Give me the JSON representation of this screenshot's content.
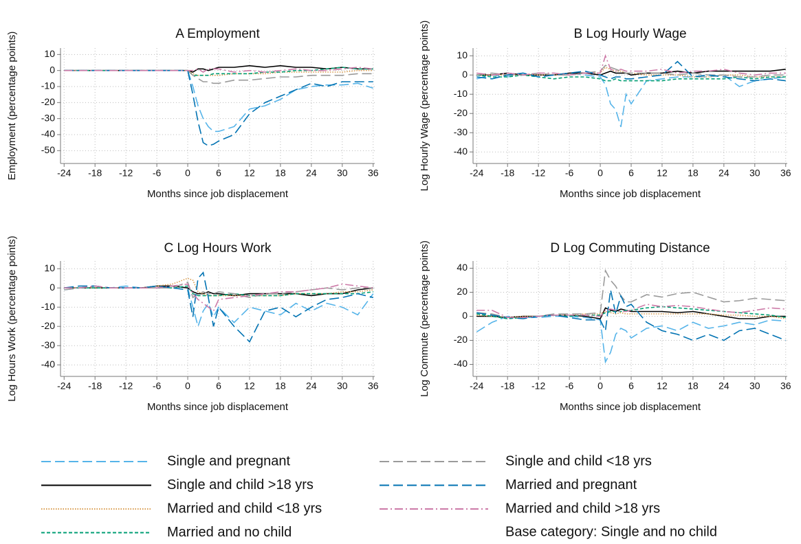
{
  "chart_data": [
    {
      "type": "line",
      "title": "A Employment",
      "xlabel": "Months since job displacement",
      "ylabel": "Employment (percentage points)",
      "x": [
        -24,
        -21,
        -18,
        -15,
        -12,
        -9,
        -6,
        -3,
        0,
        1,
        2,
        3,
        4,
        5,
        6,
        9,
        12,
        15,
        18,
        21,
        24,
        27,
        30,
        33,
        36
      ],
      "xlim": [
        -24.7,
        36.3
      ],
      "xticks": [
        -24,
        -18,
        -12,
        -6,
        0,
        6,
        12,
        18,
        24,
        30,
        36
      ],
      "ylim": [
        -58,
        14
      ],
      "yticks": [
        10,
        0,
        -10,
        -20,
        -30,
        -40,
        -50
      ],
      "grid": true,
      "series": [
        {
          "name": "Single and pregnant",
          "color": "#56b4e9",
          "dash": "long",
          "values": [
            0,
            0,
            0,
            0,
            0,
            0,
            0,
            0,
            0,
            -10,
            -22,
            -30,
            -35,
            -38,
            -38,
            -35,
            -24,
            -22,
            -18,
            -12,
            -10,
            -9,
            -9,
            -8,
            -11
          ]
        },
        {
          "name": "Single and child >18 yrs",
          "color": "#000000",
          "dash": "solid",
          "values": [
            0,
            0,
            0,
            0,
            0,
            0,
            0,
            0,
            0,
            -1,
            1,
            1,
            0,
            1,
            2,
            2,
            3,
            2,
            3,
            2,
            2,
            1,
            2,
            1,
            1
          ]
        },
        {
          "name": "Married and child <18 yrs",
          "color": "#d89a4a",
          "dash": "dotted",
          "values": [
            0,
            0,
            0,
            0,
            0,
            0,
            0,
            0,
            0,
            -2,
            -3,
            -3,
            -3,
            -3,
            -3,
            -2,
            -2,
            -2,
            -1,
            -1,
            -1,
            -1,
            -1,
            0,
            0
          ]
        },
        {
          "name": "Married and no child",
          "color": "#009e73",
          "dash": "short",
          "values": [
            0,
            0,
            0,
            0,
            0,
            0,
            0,
            0,
            0,
            -3,
            -3,
            -3,
            -3,
            -2,
            -2,
            -2,
            -2,
            -1,
            -1,
            0,
            0,
            1,
            2,
            1,
            1
          ]
        },
        {
          "name": "Single and child <18 yrs",
          "color": "#9a9a9a",
          "dash": "long",
          "values": [
            0,
            0,
            0,
            0,
            0,
            0,
            0,
            0,
            0,
            -3,
            -5,
            -7,
            -7,
            -8,
            -8,
            -6,
            -6,
            -5,
            -4,
            -4,
            -3,
            -3,
            -3,
            -2,
            -2
          ]
        },
        {
          "name": "Married and pregnant",
          "color": "#0072b2",
          "dash": "long",
          "values": [
            0,
            0,
            0,
            0,
            0,
            0,
            0,
            0,
            0,
            -15,
            -32,
            -45,
            -47,
            -46,
            -44,
            -40,
            -27,
            -20,
            -16,
            -12,
            -8,
            -10,
            -7,
            -7,
            -7
          ]
        },
        {
          "name": "Married and child >18 yrs",
          "color": "#cc79a7",
          "dash": "dashdot",
          "values": [
            0,
            0,
            0,
            0,
            0,
            0,
            0,
            0,
            0,
            0,
            1,
            -1,
            1,
            1,
            1,
            -1,
            0,
            -1,
            0,
            1,
            0,
            0,
            1,
            2,
            1
          ]
        }
      ]
    },
    {
      "type": "line",
      "title": "B Log Hourly Wage",
      "xlabel": "Months since job displacement",
      "ylabel": "Log Hourly Wage (percentage points)",
      "x": [
        -24,
        -21,
        -18,
        -15,
        -12,
        -9,
        -6,
        -3,
        0,
        1,
        2,
        3,
        4,
        5,
        6,
        9,
        12,
        15,
        18,
        21,
        24,
        27,
        30,
        33,
        36
      ],
      "xlim": [
        -24.7,
        36.3
      ],
      "xticks": [
        -24,
        -18,
        -12,
        -6,
        0,
        6,
        12,
        18,
        24,
        30,
        36
      ],
      "ylim": [
        -46,
        14
      ],
      "yticks": [
        10,
        0,
        -10,
        -20,
        -30,
        -40
      ],
      "grid": true,
      "series": [
        {
          "name": "Single and pregnant",
          "color": "#56b4e9",
          "dash": "long",
          "values": [
            -2,
            0,
            -1,
            1,
            -1,
            0,
            1,
            0,
            -1,
            -5,
            -15,
            -18,
            -27,
            -10,
            -15,
            -3,
            -2,
            -1,
            -1,
            -1,
            0,
            -6,
            -3,
            -2,
            -1
          ]
        },
        {
          "name": "Single and child >18 yrs",
          "color": "#000000",
          "dash": "solid",
          "values": [
            0,
            0,
            1,
            0,
            0,
            0,
            1,
            1,
            0,
            1,
            2,
            1,
            1,
            1,
            0,
            1,
            1,
            2,
            1,
            2,
            2,
            2,
            2,
            2,
            3
          ]
        },
        {
          "name": "Married and child <18 yrs",
          "color": "#d89a4a",
          "dash": "dotted",
          "values": [
            0,
            0,
            0,
            0,
            0,
            0,
            0,
            1,
            1,
            4,
            3,
            2,
            2,
            1,
            1,
            0,
            0,
            0,
            -1,
            -1,
            0,
            0,
            -1,
            -1,
            -1
          ]
        },
        {
          "name": "Married and no child",
          "color": "#009e73",
          "dash": "short",
          "values": [
            0,
            -1,
            -1,
            0,
            -1,
            -2,
            -1,
            -1,
            -2,
            -3,
            -3,
            -2,
            -3,
            -3,
            -3,
            -3,
            -3,
            -2,
            -2,
            -2,
            -2,
            -1,
            -2,
            -1,
            -1
          ]
        },
        {
          "name": "Single and child <18 yrs",
          "color": "#9a9a9a",
          "dash": "long",
          "values": [
            0,
            1,
            0,
            0,
            1,
            0,
            0,
            1,
            2,
            5,
            4,
            3,
            2,
            1,
            1,
            1,
            1,
            0,
            1,
            0,
            0,
            -1,
            -1,
            0,
            0
          ]
        },
        {
          "name": "Married and pregnant",
          "color": "#0072b2",
          "dash": "long",
          "values": [
            -1,
            -2,
            0,
            1,
            -1,
            0,
            1,
            2,
            0,
            -1,
            -2,
            -1,
            -1,
            -2,
            -2,
            -1,
            0,
            7,
            -1,
            0,
            -1,
            -2,
            -3,
            -2,
            -3
          ]
        },
        {
          "name": "Married and child >18 yrs",
          "color": "#cc79a7",
          "dash": "dashdot",
          "values": [
            1,
            0,
            1,
            0,
            1,
            1,
            0,
            1,
            1,
            10,
            3,
            2,
            3,
            2,
            2,
            2,
            3,
            1,
            2,
            2,
            3,
            1,
            0,
            1,
            1
          ]
        }
      ]
    },
    {
      "type": "line",
      "title": "C Log Hours Work",
      "xlabel": "Months since job displacement",
      "ylabel": "Log Hours Work (percentage points)",
      "x": [
        -24,
        -21,
        -18,
        -15,
        -12,
        -9,
        -6,
        -3,
        0,
        1,
        2,
        3,
        4,
        5,
        6,
        9,
        12,
        15,
        18,
        21,
        24,
        27,
        30,
        33,
        36
      ],
      "xlim": [
        -24.7,
        36.3
      ],
      "xticks": [
        -24,
        -18,
        -12,
        -6,
        0,
        6,
        12,
        18,
        24,
        30,
        36
      ],
      "ylim": [
        -46,
        14
      ],
      "yticks": [
        10,
        0,
        -10,
        -20,
        -30,
        -40
      ],
      "grid": true,
      "series": [
        {
          "name": "Single and pregnant",
          "color": "#56b4e9",
          "dash": "long",
          "values": [
            -1,
            0,
            1,
            0,
            1,
            0,
            0,
            1,
            0,
            -10,
            -20,
            -12,
            -8,
            -15,
            -10,
            -18,
            -10,
            -12,
            -14,
            -8,
            -12,
            -8,
            -10,
            -14,
            -3
          ]
        },
        {
          "name": "Single and child >18 yrs",
          "color": "#000000",
          "dash": "solid",
          "values": [
            0,
            0,
            0,
            0,
            0,
            0,
            1,
            1,
            0,
            -2,
            -3,
            -3,
            -2,
            -3,
            -3,
            -4,
            -3,
            -3,
            -3,
            -3,
            -4,
            -3,
            -3,
            -1,
            0
          ]
        },
        {
          "name": "Married and child <18 yrs",
          "color": "#d89a4a",
          "dash": "dotted",
          "values": [
            0,
            0,
            0,
            0,
            0,
            0,
            1,
            2,
            5,
            4,
            -2,
            -3,
            -4,
            -4,
            -4,
            -4,
            -4,
            -4,
            -4,
            -3,
            -3,
            -3,
            -2,
            -2,
            -1
          ]
        },
        {
          "name": "Married and no child",
          "color": "#009e73",
          "dash": "short",
          "values": [
            0,
            0,
            0,
            0,
            0,
            0,
            0,
            0,
            1,
            -3,
            -4,
            -4,
            -4,
            -4,
            -4,
            -3,
            -4,
            -4,
            -4,
            -3,
            -3,
            -3,
            -3,
            -3,
            -2
          ]
        },
        {
          "name": "Single and child <18 yrs",
          "color": "#9a9a9a",
          "dash": "long",
          "values": [
            -1,
            0,
            1,
            0,
            0,
            0,
            0,
            0,
            3,
            -5,
            -3,
            -2,
            -3,
            -3,
            -2,
            -3,
            -5,
            -3,
            -3,
            -2,
            -1,
            0,
            -1,
            0,
            0
          ]
        },
        {
          "name": "Married and pregnant",
          "color": "#0072b2",
          "dash": "long",
          "values": [
            0,
            1,
            1,
            0,
            0,
            0,
            1,
            0,
            -1,
            -15,
            5,
            8,
            -5,
            -20,
            -10,
            -20,
            -28,
            -12,
            -10,
            -15,
            -10,
            -6,
            -5,
            -3,
            -5
          ]
        },
        {
          "name": "Married and child >18 yrs",
          "color": "#cc79a7",
          "dash": "dashdot",
          "values": [
            0,
            0,
            1,
            0,
            0,
            0,
            0,
            1,
            2,
            -3,
            -6,
            -8,
            -10,
            -12,
            -6,
            -5,
            -4,
            -3,
            -2,
            -2,
            -1,
            0,
            2,
            1,
            0
          ]
        }
      ]
    },
    {
      "type": "line",
      "title": "D Log Commuting Distance",
      "xlabel": "Months since job displacement",
      "ylabel": "Log Commute (percentage points)",
      "x": [
        -24,
        -21,
        -18,
        -15,
        -12,
        -9,
        -6,
        -3,
        0,
        1,
        2,
        3,
        4,
        5,
        6,
        9,
        12,
        15,
        18,
        21,
        24,
        27,
        30,
        33,
        36
      ],
      "xlim": [
        -24.7,
        36.3
      ],
      "xticks": [
        -24,
        -18,
        -12,
        -6,
        0,
        6,
        12,
        18,
        24,
        30,
        36
      ],
      "ylim": [
        -50,
        46
      ],
      "yticks": [
        40,
        20,
        0,
        -20,
        -40
      ],
      "grid": true,
      "series": [
        {
          "name": "Single and pregnant",
          "color": "#56b4e9",
          "dash": "long",
          "values": [
            -13,
            -5,
            0,
            -1,
            -1,
            0,
            0,
            -1,
            -3,
            -38,
            -30,
            -15,
            -10,
            -12,
            -18,
            -10,
            -8,
            -12,
            -5,
            -10,
            -8,
            -5,
            -7,
            -3,
            -4
          ]
        },
        {
          "name": "Single and child >18 yrs",
          "color": "#000000",
          "dash": "solid",
          "values": [
            0,
            0,
            -1,
            0,
            0,
            1,
            1,
            0,
            -2,
            7,
            5,
            4,
            6,
            5,
            4,
            4,
            4,
            3,
            4,
            2,
            0,
            -2,
            -2,
            0,
            0
          ]
        },
        {
          "name": "Married and child <18 yrs",
          "color": "#d89a4a",
          "dash": "dotted",
          "values": [
            1,
            0,
            -1,
            0,
            0,
            1,
            1,
            2,
            2,
            4,
            3,
            2,
            3,
            2,
            2,
            2,
            2,
            2,
            2,
            2,
            1,
            1,
            0,
            0,
            -2
          ]
        },
        {
          "name": "Married and no child",
          "color": "#009e73",
          "dash": "short",
          "values": [
            2,
            0,
            -2,
            -1,
            0,
            1,
            0,
            1,
            1,
            3,
            4,
            4,
            4,
            5,
            5,
            7,
            8,
            7,
            6,
            5,
            4,
            3,
            2,
            1,
            -1
          ]
        },
        {
          "name": "Single and child <18 yrs",
          "color": "#9a9a9a",
          "dash": "long",
          "values": [
            3,
            2,
            -1,
            -1,
            0,
            2,
            2,
            2,
            3,
            38,
            30,
            25,
            17,
            12,
            12,
            18,
            16,
            19,
            20,
            16,
            12,
            13,
            15,
            14,
            13
          ]
        },
        {
          "name": "Married and pregnant",
          "color": "#0072b2",
          "dash": "long",
          "values": [
            3,
            1,
            -1,
            -2,
            0,
            1,
            -1,
            -3,
            -3,
            -12,
            22,
            2,
            17,
            8,
            10,
            -5,
            -12,
            -15,
            -20,
            -15,
            -20,
            -12,
            -10,
            -15,
            -20
          ]
        },
        {
          "name": "Married and child >18 yrs",
          "color": "#cc79a7",
          "dash": "dashdot",
          "values": [
            5,
            5,
            -1,
            -1,
            0,
            1,
            1,
            1,
            0,
            5,
            6,
            5,
            4,
            4,
            5,
            10,
            8,
            9,
            8,
            6,
            4,
            3,
            5,
            7,
            6
          ]
        }
      ]
    }
  ],
  "legend": {
    "note": "Base category: Single and no child"
  }
}
